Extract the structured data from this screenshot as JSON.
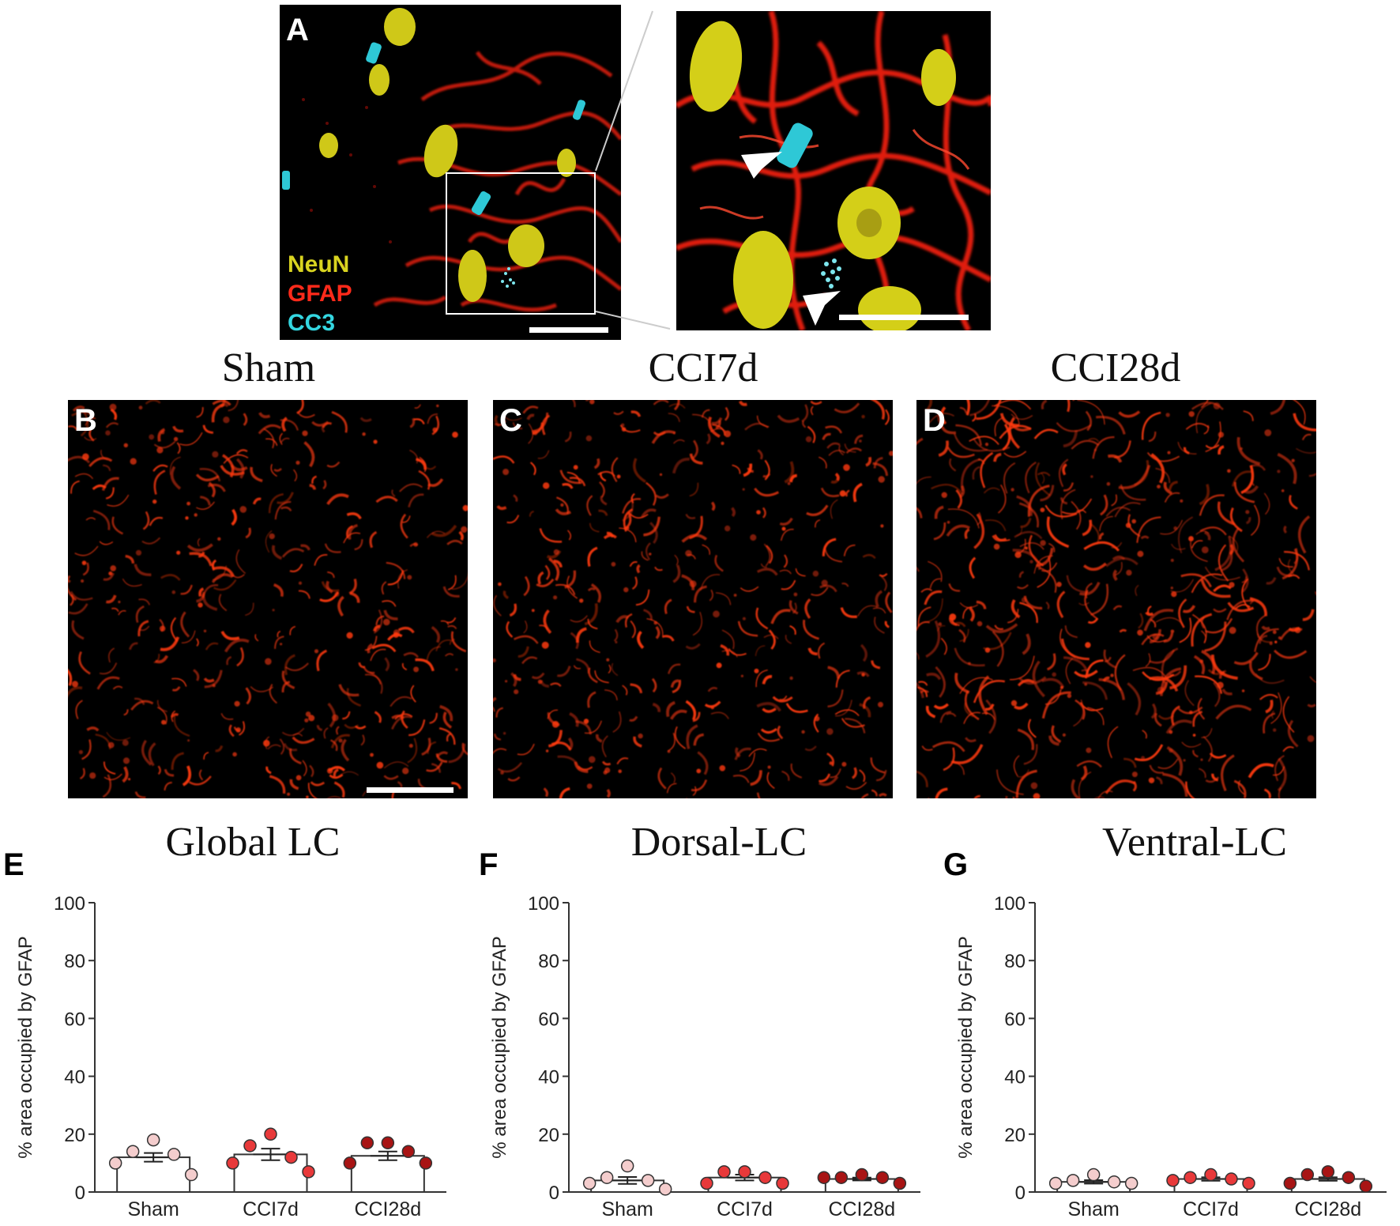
{
  "panel_letters": [
    "A",
    "B",
    "C",
    "D",
    "E",
    "F",
    "G"
  ],
  "panel_a": {
    "legend": [
      {
        "label": "NeuN",
        "color": "#d9d420"
      },
      {
        "label": "GFAP",
        "color": "#ff2a1a"
      },
      {
        "label": "CC3",
        "color": "#34d6e0"
      }
    ]
  },
  "conditions": [
    "Sham",
    "CCI7d",
    "CCI28d"
  ],
  "regions": [
    "Global LC",
    "Dorsal-LC",
    "Ventral-LC"
  ],
  "colors": {
    "sham_fill": "#f4cdcd",
    "cci7d_fill": "#e8393a",
    "cci28d_fill": "#a81414",
    "gfap_red": "#ff3a10"
  },
  "chart_data": [
    {
      "type": "bar",
      "title": "Global LC",
      "ylabel": "% area occupied by GFAP",
      "xlabel": "",
      "ylim": [
        0,
        100
      ],
      "yticks": [
        0,
        20,
        40,
        60,
        80,
        100
      ],
      "categories": [
        "Sham",
        "CCI7d",
        "CCI28d"
      ],
      "values": [
        12,
        13,
        12.5
      ],
      "sem": [
        1.5,
        2,
        1.5
      ],
      "points": [
        [
          18,
          14,
          13,
          10,
          6
        ],
        [
          20,
          16,
          12,
          10,
          7
        ],
        [
          17,
          17,
          14,
          10,
          10
        ]
      ]
    },
    {
      "type": "bar",
      "title": "Dorsal-LC",
      "ylabel": "% area occupied by GFAP",
      "xlabel": "",
      "ylim": [
        0,
        100
      ],
      "yticks": [
        0,
        20,
        40,
        60,
        80,
        100
      ],
      "categories": [
        "Sham",
        "CCI7d",
        "CCI28d"
      ],
      "values": [
        4,
        5,
        4.5
      ],
      "sem": [
        1.2,
        1.0,
        0.5
      ],
      "points": [
        [
          9,
          5,
          4,
          3,
          1
        ],
        [
          7,
          7,
          5,
          3,
          3
        ],
        [
          6,
          5,
          5,
          5,
          3
        ]
      ]
    },
    {
      "type": "bar",
      "title": "Ventral-LC",
      "ylabel": "% area occupied by GFAP",
      "xlabel": "",
      "ylim": [
        0,
        100
      ],
      "yticks": [
        0,
        20,
        40,
        60,
        80,
        100
      ],
      "categories": [
        "Sham",
        "CCI7d",
        "CCI28d"
      ],
      "values": [
        3.5,
        4.5,
        4.5
      ],
      "sem": [
        0.6,
        0.6,
        0.6
      ],
      "points": [
        [
          6,
          4,
          3.5,
          3,
          3
        ],
        [
          6,
          5,
          4.5,
          4,
          3
        ],
        [
          7,
          6,
          5,
          3,
          2
        ]
      ]
    }
  ]
}
